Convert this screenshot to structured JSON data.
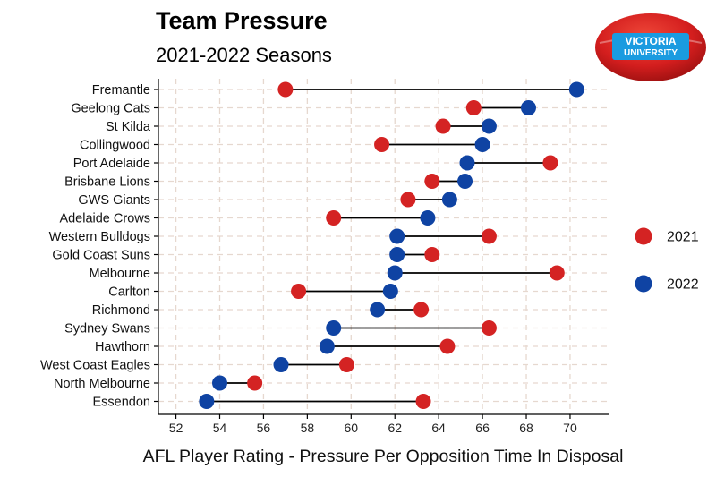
{
  "chart_data": {
    "type": "dumbbell",
    "title": "Team Pressure",
    "subtitle": "2021-2022 Seasons",
    "xlabel": "AFL Player Rating - Pressure Per Opposition Time In Disposal",
    "ylabel": "",
    "xlim": [
      51.2,
      71.8
    ],
    "xticks": [
      52,
      54,
      56,
      58,
      60,
      62,
      64,
      66,
      68,
      70
    ],
    "grid": "dashed",
    "legend_position": "right",
    "series": [
      {
        "name": "2021",
        "color": "#d42323"
      },
      {
        "name": "2022",
        "color": "#0f43a3"
      }
    ],
    "teams": [
      {
        "team": "Fremantle",
        "v2021": 57.0,
        "v2022": 70.3
      },
      {
        "team": "Geelong Cats",
        "v2021": 65.6,
        "v2022": 68.1
      },
      {
        "team": "St Kilda",
        "v2021": 64.2,
        "v2022": 66.3
      },
      {
        "team": "Collingwood",
        "v2021": 61.4,
        "v2022": 66.0
      },
      {
        "team": "Port Adelaide",
        "v2021": 69.1,
        "v2022": 65.3
      },
      {
        "team": "Brisbane Lions",
        "v2021": 63.7,
        "v2022": 65.2
      },
      {
        "team": "GWS Giants",
        "v2021": 62.6,
        "v2022": 64.5
      },
      {
        "team": "Adelaide Crows",
        "v2021": 59.2,
        "v2022": 63.5
      },
      {
        "team": "Western Bulldogs",
        "v2021": 66.3,
        "v2022": 62.1
      },
      {
        "team": "Gold Coast Suns",
        "v2021": 63.7,
        "v2022": 62.1
      },
      {
        "team": "Melbourne",
        "v2021": 69.4,
        "v2022": 62.0
      },
      {
        "team": "Carlton",
        "v2021": 57.6,
        "v2022": 61.8
      },
      {
        "team": "Richmond",
        "v2021": 63.2,
        "v2022": 61.2
      },
      {
        "team": "Sydney Swans",
        "v2021": 66.3,
        "v2022": 59.2
      },
      {
        "team": "Hawthorn",
        "v2021": 64.4,
        "v2022": 58.9
      },
      {
        "team": "West Coast Eagles",
        "v2021": 59.8,
        "v2022": 56.8
      },
      {
        "team": "North Melbourne",
        "v2021": 55.6,
        "v2022": 54.0
      },
      {
        "team": "Essendon",
        "v2021": 63.3,
        "v2022": 53.4
      }
    ]
  },
  "logo": {
    "line1": "VICTORIA",
    "line2": "UNIVERSITY"
  }
}
